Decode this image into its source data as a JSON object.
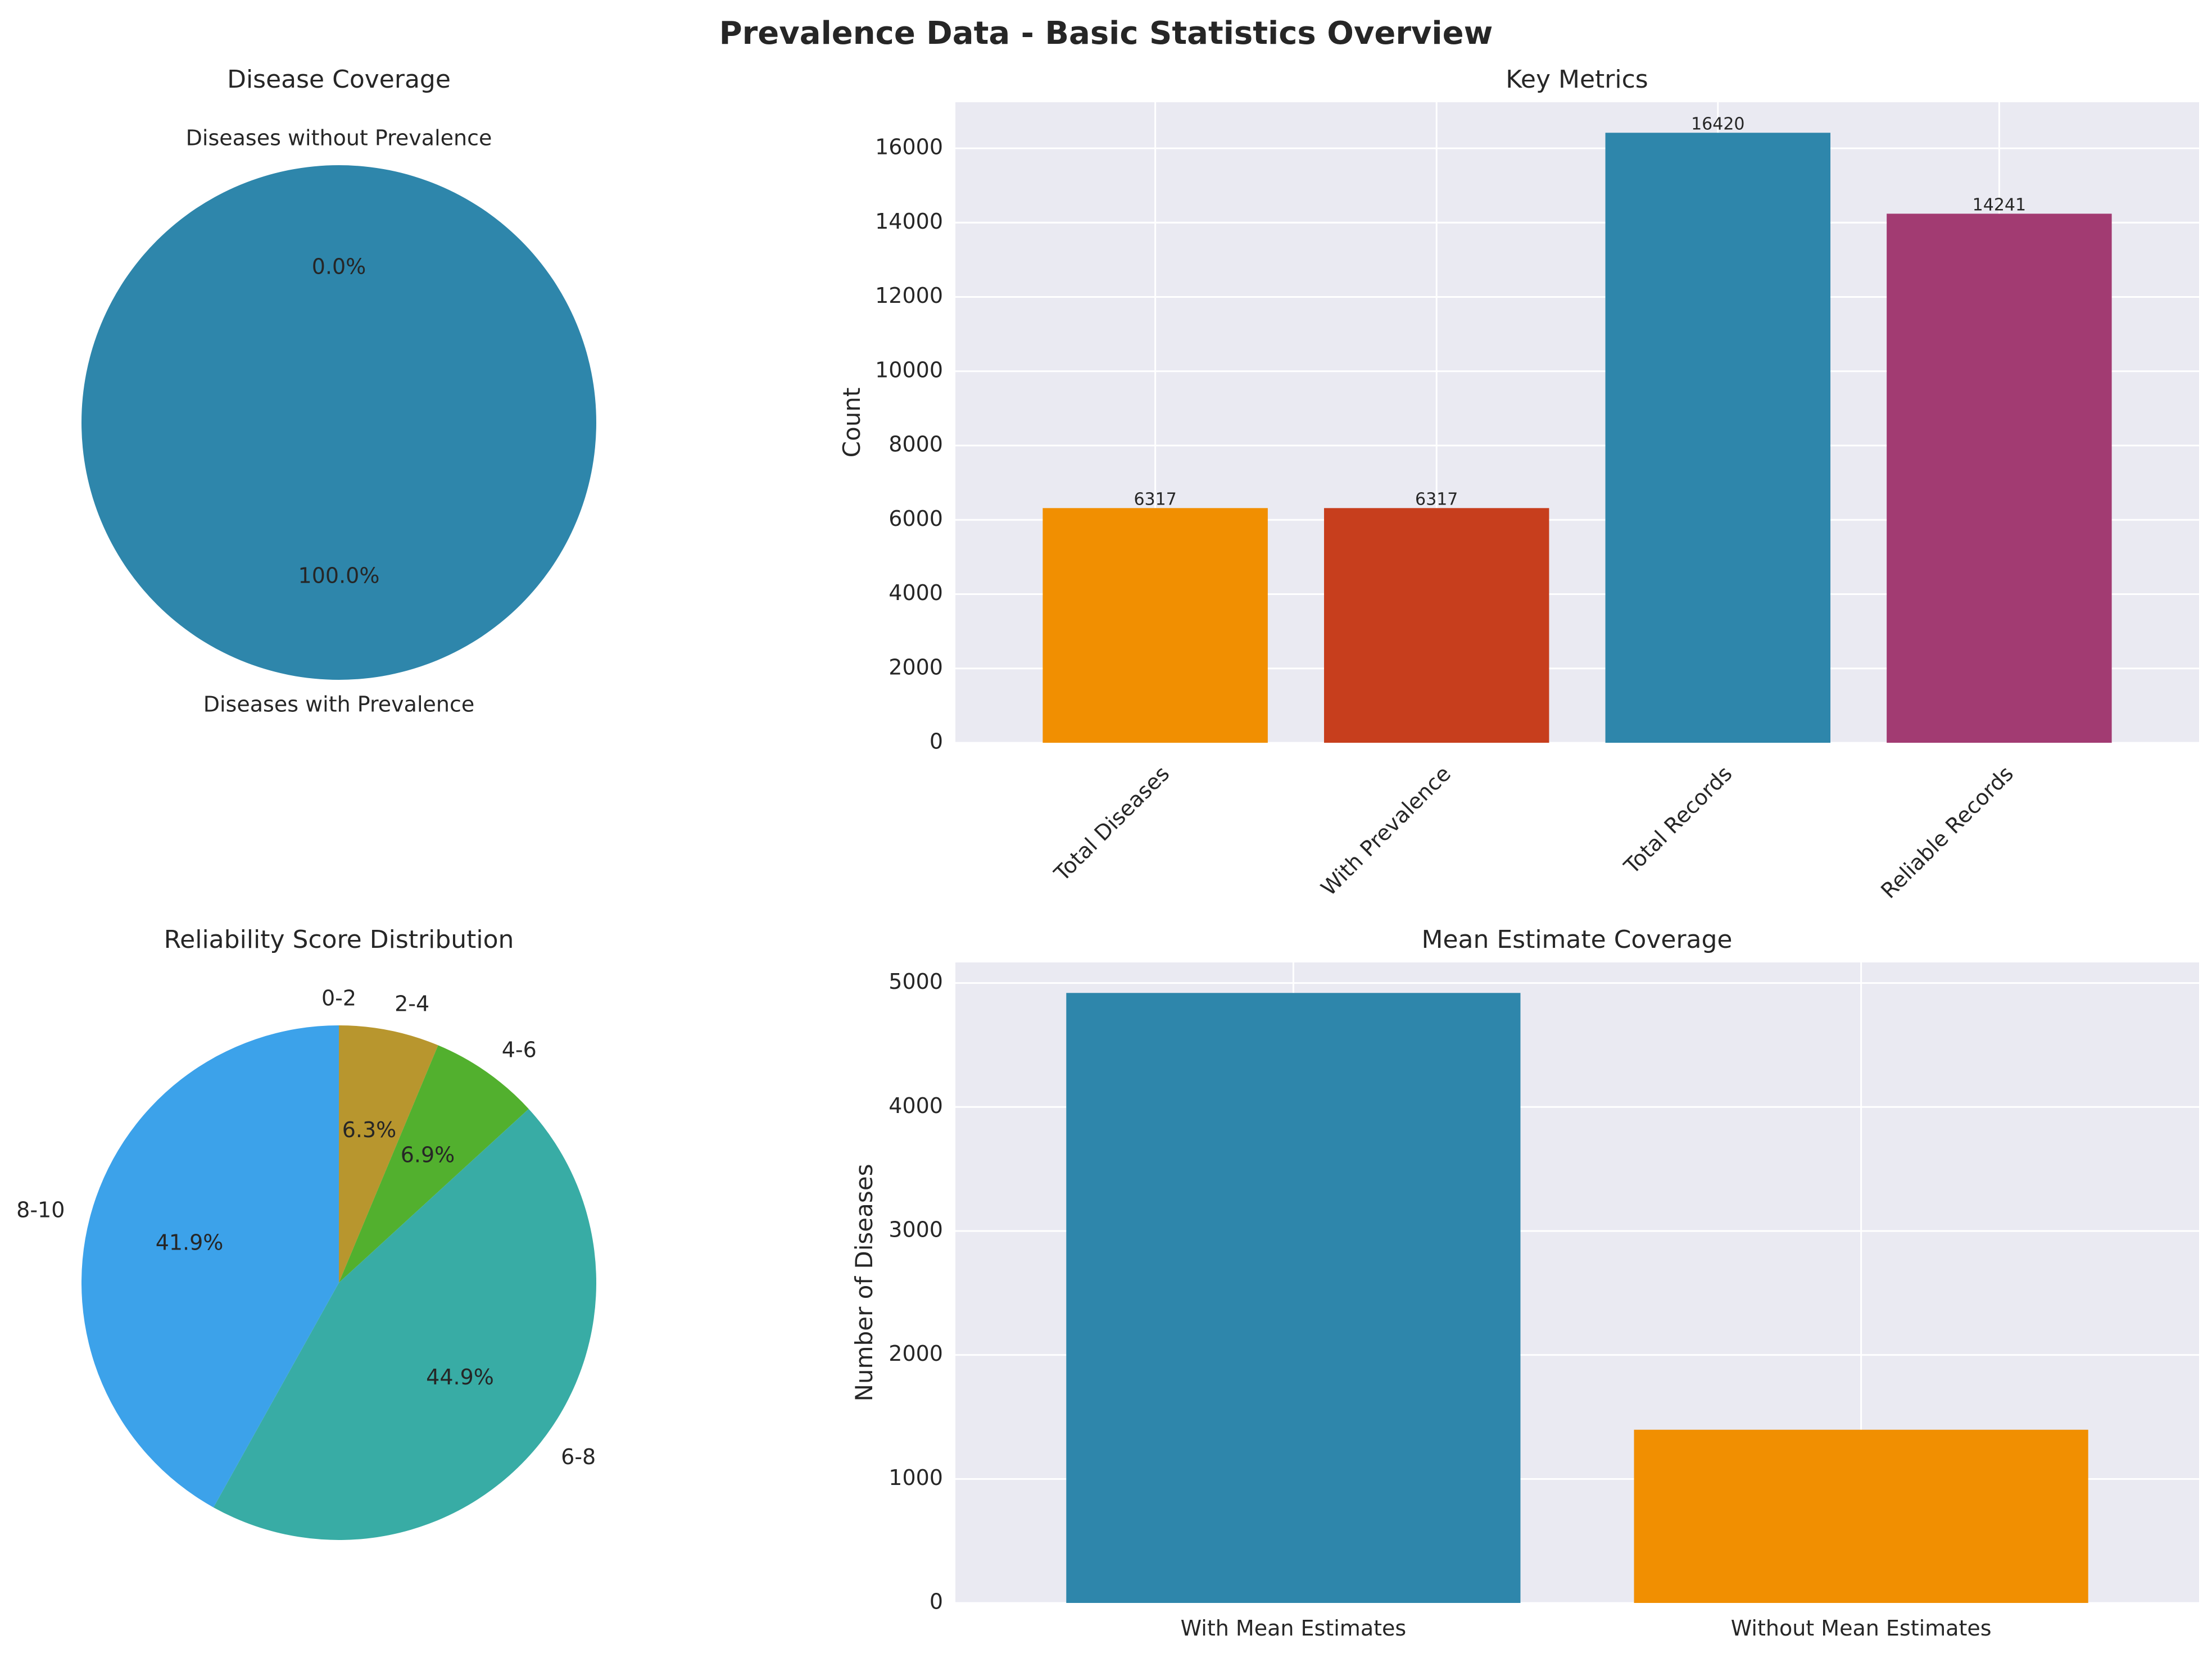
{
  "figure_title": "Prevalence Data - Basic Statistics Overview",
  "chart_data": [
    {
      "type": "pie",
      "title": "Disease Coverage",
      "labels": [
        "Diseases with Prevalence",
        "Diseases without Prevalence"
      ],
      "values": [
        100.0,
        0.0
      ],
      "pct_labels": [
        "100.0%",
        "0.0%"
      ],
      "colors": [
        "#2e86ab",
        "#f18f01"
      ]
    },
    {
      "type": "bar",
      "title": "Key Metrics",
      "ylabel": "Count",
      "categories": [
        "Total Diseases",
        "With Prevalence",
        "Total Records",
        "Reliable Records"
      ],
      "values": [
        6317,
        6317,
        16420,
        14241
      ],
      "value_labels": [
        "6317",
        "6317",
        "16420",
        "14241"
      ],
      "colors": [
        "#f18f01",
        "#c73e1d",
        "#2e86ab",
        "#a23b72"
      ],
      "ylim": [
        0,
        17241
      ],
      "yticks": [
        0,
        2000,
        4000,
        6000,
        8000,
        10000,
        12000,
        14000,
        16000
      ],
      "ytick_labels": [
        "0",
        "2000",
        "4000",
        "6000",
        "8000",
        "10000",
        "12000",
        "14000",
        "16000"
      ]
    },
    {
      "type": "pie",
      "title": "Reliability Score Distribution",
      "labels": [
        "0-2",
        "2-4",
        "4-6",
        "6-8",
        "8-10"
      ],
      "values": [
        0.0,
        6.3,
        6.9,
        44.9,
        41.9
      ],
      "pct_labels": [
        "0.0%",
        "6.3%",
        "6.9%",
        "44.9%",
        "41.9%"
      ],
      "colors": [
        "#c0c0c0",
        "#b8962e",
        "#52b02e",
        "#38aca5",
        "#3ca2ea"
      ]
    },
    {
      "type": "bar",
      "title": "Mean Estimate Coverage",
      "ylabel": "Number of Diseases",
      "categories": [
        "With Mean Estimates",
        "Without Mean Estimates"
      ],
      "values": [
        4920,
        1397
      ],
      "colors": [
        "#2e86ab",
        "#f18f01"
      ],
      "ylim": [
        0,
        5166
      ],
      "yticks": [
        0,
        1000,
        2000,
        3000,
        4000,
        5000
      ],
      "ytick_labels": [
        "0",
        "1000",
        "2000",
        "3000",
        "4000",
        "5000"
      ]
    }
  ]
}
